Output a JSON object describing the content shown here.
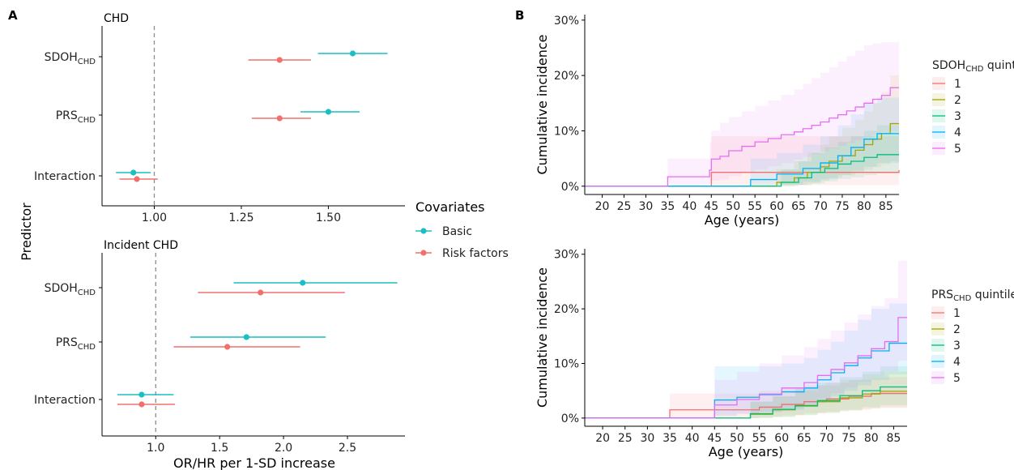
{
  "panel_a": {
    "tag": "A",
    "ylabel": "Predictor",
    "xlabel": "OR/HR per 1-SD increase"
  },
  "panel_b": {
    "tag": "B"
  },
  "legend": {
    "title": "Covariates",
    "items": [
      {
        "label": "Basic",
        "color": "#1abfc4"
      },
      {
        "label": "Risk factors",
        "color": "#f2706c"
      }
    ]
  },
  "chart_data": [
    {
      "type": "scatter",
      "subtype": "forest",
      "title": "CHD",
      "xlim": [
        0.85,
        1.72
      ],
      "xticks": [
        "1.00",
        "1.25",
        "1.50"
      ],
      "xtick_values": [
        1.0,
        1.25,
        1.5
      ],
      "reference_line": 1.0,
      "categories": [
        {
          "main": "SDOH",
          "sub": "CHD"
        },
        {
          "main": "PRS",
          "sub": "CHD"
        },
        {
          "main": "Interaction",
          "sub": ""
        }
      ],
      "series": [
        {
          "name": "Basic",
          "color": "#1abfc4",
          "estimates": [
            1.57,
            1.5,
            0.94
          ],
          "lower": [
            1.47,
            1.42,
            0.89
          ],
          "upper": [
            1.67,
            1.59,
            0.99
          ]
        },
        {
          "name": "Risk factors",
          "color": "#f2706c",
          "estimates": [
            1.36,
            1.36,
            0.95
          ],
          "lower": [
            1.27,
            1.28,
            0.9
          ],
          "upper": [
            1.45,
            1.45,
            1.01
          ]
        }
      ]
    },
    {
      "type": "scatter",
      "subtype": "forest",
      "title": "Incident CHD",
      "xlim": [
        0.58,
        2.95
      ],
      "xticks": [
        "1.0",
        "1.5",
        "2.0",
        "2.5"
      ],
      "xtick_values": [
        1.0,
        1.5,
        2.0,
        2.5
      ],
      "reference_line": 1.0,
      "categories": [
        {
          "main": "SDOH",
          "sub": "CHD"
        },
        {
          "main": "PRS",
          "sub": "CHD"
        },
        {
          "main": "Interaction",
          "sub": ""
        }
      ],
      "series": [
        {
          "name": "Basic",
          "color": "#1abfc4",
          "estimates": [
            2.15,
            1.71,
            0.89
          ],
          "lower": [
            1.61,
            1.27,
            0.7
          ],
          "upper": [
            2.89,
            2.33,
            1.14
          ]
        },
        {
          "name": "Risk factors",
          "color": "#f2706c",
          "estimates": [
            1.82,
            1.56,
            0.89
          ],
          "lower": [
            1.33,
            1.14,
            0.7
          ],
          "upper": [
            2.48,
            2.13,
            1.15
          ]
        }
      ]
    },
    {
      "type": "line",
      "subtype": "step-cumulative-incidence",
      "title": "",
      "xlabel": "Age (years)",
      "ylabel": "Cumulative incidence",
      "xlim": [
        16,
        88
      ],
      "ylim": [
        -1.5,
        31
      ],
      "xticks": [
        20,
        25,
        30,
        35,
        40,
        45,
        50,
        55,
        60,
        65,
        70,
        75,
        80,
        85
      ],
      "yticks": [
        0,
        10,
        20,
        30
      ],
      "ytick_labels": [
        "0%",
        "10%",
        "20%",
        "30%"
      ],
      "legend_title": {
        "main": "SDOH",
        "sub": "CHD",
        "suffix": " quintile"
      },
      "legend_position": "right",
      "series": [
        {
          "name": "1",
          "color": "#f2706c",
          "x": [
            16,
            45,
            88
          ],
          "y": [
            0,
            2.5,
            2.9
          ],
          "lower": [
            0,
            0.2,
            0.5
          ],
          "upper": [
            0,
            9,
            9.5
          ]
        },
        {
          "name": "2",
          "color": "#a3a500",
          "x": [
            16,
            60,
            64,
            67,
            70,
            72,
            75,
            78,
            80,
            82,
            84,
            86,
            88
          ],
          "y": [
            0,
            0.7,
            1.5,
            2.5,
            3.5,
            4.5,
            5.5,
            6.5,
            7.5,
            8.5,
            9.5,
            11.3,
            11.3
          ],
          "lower": [
            0,
            0,
            0.2,
            0.5,
            1.0,
            1.5,
            2.0,
            2.5,
            3.0,
            3.5,
            4.0,
            4.5,
            4.5
          ],
          "upper": [
            0,
            3,
            4.5,
            6,
            7.5,
            9,
            10.5,
            12,
            13.5,
            15,
            17,
            20,
            20
          ]
        },
        {
          "name": "3",
          "color": "#00bf7d",
          "x": [
            16,
            61,
            65,
            68,
            71,
            74,
            77,
            80,
            83,
            86,
            88
          ],
          "y": [
            0,
            0.7,
            1.5,
            2.5,
            3.2,
            4.0,
            4.5,
            5.2,
            5.7,
            5.7,
            5.7
          ],
          "lower": [
            0,
            0,
            0.2,
            0.5,
            0.9,
            1.3,
            1.6,
            2.0,
            2.3,
            2.3,
            2.3
          ],
          "upper": [
            0,
            3,
            4.5,
            6,
            7,
            8,
            9,
            10,
            11,
            11,
            11
          ]
        },
        {
          "name": "4",
          "color": "#00b0f6",
          "x": [
            16,
            54,
            60,
            66,
            70,
            74,
            77,
            80,
            83,
            85,
            88
          ],
          "y": [
            0,
            1.2,
            2.2,
            3.2,
            4.2,
            5.5,
            7.0,
            8.5,
            9.5,
            9.5,
            9.5
          ],
          "lower": [
            0,
            0,
            0.3,
            0.8,
            1.3,
            2.0,
            2.8,
            3.5,
            4.2,
            4.2,
            4.2
          ],
          "upper": [
            0,
            5,
            6,
            7.5,
            9,
            11,
            13,
            15,
            16,
            16,
            16
          ]
        },
        {
          "name": "5",
          "color": "#e76bf3",
          "x": [
            16,
            35,
            44.6,
            45,
            47,
            49,
            52,
            55,
            58,
            61,
            64,
            66,
            68,
            70,
            72,
            74,
            76,
            78,
            80,
            82,
            84,
            86,
            88
          ],
          "y": [
            0,
            1.7,
            2.9,
            4.9,
            5.4,
            6.4,
            7.2,
            8.0,
            8.6,
            9.3,
            9.8,
            10.4,
            11.0,
            11.6,
            12.3,
            12.9,
            13.6,
            14.3,
            15.0,
            15.7,
            16.4,
            17.8,
            17.8
          ],
          "lower": [
            0,
            0.3,
            0.5,
            1.0,
            1.2,
            1.8,
            2.4,
            3.0,
            3.6,
            4.2,
            4.8,
            5.3,
            5.8,
            6.3,
            6.8,
            7.3,
            7.8,
            8.3,
            8.8,
            9.3,
            9.8,
            10.0,
            10.0
          ],
          "upper": [
            0,
            5,
            8,
            10,
            11.5,
            12.5,
            13.5,
            14.5,
            15.5,
            16.5,
            17.5,
            18.5,
            19.5,
            20.5,
            21.5,
            22.5,
            23.5,
            24.5,
            25.5,
            25.8,
            26,
            26,
            26
          ]
        }
      ]
    },
    {
      "type": "line",
      "subtype": "step-cumulative-incidence",
      "title": "",
      "xlabel": "Age (years)",
      "ylabel": "Cumulative incidence",
      "xlim": [
        16,
        88
      ],
      "ylim": [
        -1.5,
        31
      ],
      "xticks": [
        20,
        25,
        30,
        35,
        40,
        45,
        50,
        55,
        60,
        65,
        70,
        75,
        80,
        85
      ],
      "yticks": [
        0,
        10,
        20,
        30
      ],
      "ytick_labels": [
        "0%",
        "10%",
        "20%",
        "30%"
      ],
      "legend_title": {
        "main": "PRS",
        "sub": "CHD",
        "suffix": " quintile"
      },
      "legend_position": "right",
      "series": [
        {
          "name": "1",
          "color": "#f2706c",
          "x": [
            16,
            35,
            45,
            55,
            60,
            65,
            70,
            75,
            80,
            88
          ],
          "y": [
            0,
            1.5,
            1.5,
            2.0,
            2.5,
            3.0,
            3.5,
            4.0,
            4.5,
            4.5
          ],
          "lower": [
            0,
            0,
            0,
            0.2,
            0.5,
            0.9,
            1.2,
            1.5,
            1.8,
            1.8
          ],
          "upper": [
            0,
            4.5,
            4.5,
            5,
            5.5,
            6,
            6.5,
            7,
            7.5,
            7.5
          ]
        },
        {
          "name": "2",
          "color": "#a3a500",
          "x": [
            16,
            53,
            58,
            63,
            68,
            73,
            78,
            82,
            88
          ],
          "y": [
            0,
            0.7,
            1.5,
            2.2,
            3.0,
            3.7,
            4.4,
            4.9,
            4.9
          ],
          "lower": [
            0,
            0,
            0.2,
            0.5,
            0.9,
            1.3,
            1.7,
            2.0,
            2.0
          ],
          "upper": [
            0,
            3,
            4,
            5,
            6,
            7,
            8,
            8.5,
            8.5
          ]
        },
        {
          "name": "3",
          "color": "#00bf7d",
          "x": [
            16,
            53,
            58,
            63,
            68,
            73,
            78,
            82,
            88
          ],
          "y": [
            0,
            0.8,
            1.6,
            2.3,
            3.2,
            4.1,
            5.0,
            5.7,
            5.7
          ],
          "lower": [
            0,
            0,
            0.2,
            0.6,
            1.0,
            1.5,
            2.0,
            2.4,
            2.4
          ],
          "upper": [
            0,
            3,
            4,
            5.5,
            6.5,
            7.5,
            8.5,
            9.5,
            9.5
          ]
        },
        {
          "name": "4",
          "color": "#00b0f6",
          "x": [
            16,
            45,
            50,
            55,
            60,
            65,
            68,
            71,
            74,
            77,
            80,
            84,
            88
          ],
          "y": [
            0,
            3.3,
            3.8,
            4.3,
            4.8,
            5.5,
            7.0,
            8.3,
            9.6,
            11.0,
            12.3,
            13.7,
            13.7
          ],
          "lower": [
            0,
            0.5,
            0.8,
            1.1,
            1.5,
            2.0,
            3.0,
            4.0,
            5.0,
            6.0,
            7.0,
            8.0,
            8.0
          ],
          "upper": [
            0,
            9.5,
            9.5,
            9.5,
            10,
            11,
            12.5,
            14,
            16,
            18,
            20,
            21,
            21
          ]
        },
        {
          "name": "5",
          "color": "#e76bf3",
          "x": [
            16,
            45,
            50,
            55,
            60,
            65,
            68,
            71,
            74,
            77,
            80,
            83,
            86,
            88
          ],
          "y": [
            0,
            2.4,
            3.4,
            4.4,
            5.5,
            6.5,
            7.8,
            8.9,
            10.1,
            11.4,
            12.7,
            14.0,
            18.4,
            18.4
          ],
          "lower": [
            0,
            0.3,
            0.7,
            1.2,
            1.8,
            2.6,
            3.6,
            4.6,
            5.6,
            6.6,
            7.6,
            8.5,
            10.5,
            10.5
          ],
          "upper": [
            0,
            7,
            8.5,
            10,
            11.5,
            13,
            14.5,
            16,
            17.5,
            19,
            20.5,
            22,
            28.8,
            28.8
          ]
        }
      ]
    }
  ]
}
